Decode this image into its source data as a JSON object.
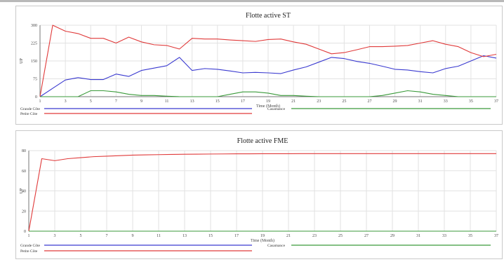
{
  "chart_data": [
    {
      "type": "line",
      "title": "Flotte active  ST",
      "xlabel": "Time (Month)",
      "ylabel": "UP",
      "xlim": [
        1,
        37
      ],
      "ylim": [
        0,
        300
      ],
      "x_ticks": [
        "1",
        "3",
        "5",
        "7",
        "9",
        "11",
        "13",
        "15",
        "17",
        "19",
        "21",
        "23",
        "25",
        "27",
        "29",
        "31",
        "33",
        "35",
        "37"
      ],
      "y_ticks": [
        "0",
        "75",
        "150",
        "225",
        "300"
      ],
      "grid": true,
      "legend_position": "bottom",
      "x": [
        1,
        2,
        3,
        4,
        5,
        6,
        7,
        8,
        9,
        10,
        11,
        12,
        13,
        14,
        15,
        16,
        17,
        18,
        19,
        20,
        21,
        22,
        23,
        24,
        25,
        26,
        27,
        28,
        29,
        30,
        31,
        32,
        33,
        34,
        35,
        36,
        37
      ],
      "series": [
        {
          "name": "Grande Côte",
          "color": "#3a3ad0",
          "values": [
            0,
            35,
            70,
            80,
            72,
            72,
            95,
            85,
            110,
            120,
            130,
            165,
            110,
            118,
            115,
            108,
            100,
            102,
            100,
            97,
            112,
            125,
            145,
            165,
            160,
            148,
            140,
            128,
            115,
            112,
            105,
            100,
            118,
            128,
            150,
            172,
            162
          ]
        },
        {
          "name": "Petite Côte",
          "color": "#e03a3a",
          "values": [
            0,
            300,
            275,
            265,
            245,
            245,
            225,
            250,
            230,
            218,
            215,
            200,
            245,
            242,
            242,
            238,
            235,
            232,
            240,
            242,
            230,
            220,
            200,
            180,
            185,
            197,
            210,
            210,
            212,
            215,
            225,
            235,
            220,
            210,
            185,
            168,
            178
          ]
        },
        {
          "name": "Casamance",
          "color": "#3a9a3a",
          "values": [
            0,
            0,
            0,
            0,
            25,
            25,
            20,
            10,
            5,
            5,
            2,
            0,
            0,
            0,
            0,
            10,
            20,
            20,
            15,
            5,
            5,
            2,
            0,
            0,
            0,
            0,
            0,
            5,
            15,
            25,
            20,
            10,
            5,
            0,
            0,
            0,
            0
          ]
        }
      ]
    },
    {
      "type": "line",
      "title": "Flotte active  FME",
      "xlabel": "Time (Month)",
      "ylabel": "UP",
      "xlim": [
        1,
        37
      ],
      "ylim": [
        0,
        80
      ],
      "x_ticks": [
        "1",
        "3",
        "5",
        "7",
        "9",
        "11",
        "13",
        "15",
        "17",
        "19",
        "21",
        "23",
        "25",
        "27",
        "29",
        "31",
        "33",
        "35",
        "37"
      ],
      "y_ticks": [
        "0",
        "20",
        "40",
        "60",
        "80"
      ],
      "grid": true,
      "legend_position": "bottom",
      "x": [
        1,
        2,
        3,
        4,
        5,
        6,
        7,
        8,
        9,
        10,
        11,
        12,
        13,
        14,
        15,
        16,
        17,
        18,
        19,
        20,
        21,
        22,
        23,
        24,
        25,
        26,
        27,
        28,
        29,
        30,
        31,
        32,
        33,
        34,
        35,
        36,
        37
      ],
      "series": [
        {
          "name": "Grande Côte",
          "color": "#3a3ad0",
          "values": [
            0,
            0,
            0,
            0,
            0,
            0,
            0,
            0,
            0,
            0,
            0,
            0,
            0,
            0,
            0,
            0,
            0,
            0,
            0,
            0,
            0,
            0,
            0,
            0,
            0,
            0,
            0,
            0,
            0,
            0,
            0,
            0,
            0,
            0,
            0,
            0,
            0
          ]
        },
        {
          "name": "Petite Côte",
          "color": "#e03a3a",
          "values": [
            0,
            72,
            70,
            72,
            73,
            74,
            74.5,
            75,
            75.5,
            75.8,
            76,
            76.2,
            76.4,
            76.5,
            76.6,
            76.7,
            76.8,
            76.8,
            76.9,
            76.9,
            76.9,
            77,
            77,
            77,
            77,
            77,
            77,
            77,
            77,
            77,
            77,
            77,
            77,
            77,
            77,
            77,
            77
          ]
        },
        {
          "name": "Casamance",
          "color": "#3a9a3a",
          "values": [
            0,
            0,
            0,
            0,
            0,
            0,
            0,
            0,
            0,
            0,
            0,
            0,
            0,
            0,
            0,
            0,
            0,
            0,
            0,
            0,
            0,
            0,
            0,
            0,
            0,
            0,
            0,
            0,
            0,
            0,
            0,
            0,
            0,
            0,
            0,
            0,
            0
          ]
        }
      ]
    }
  ]
}
